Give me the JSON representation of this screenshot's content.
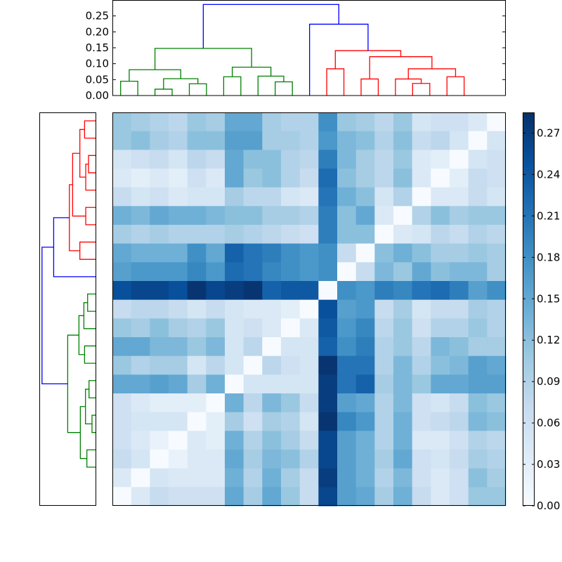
{
  "chart_data": [
    {
      "type": "dendrogram",
      "orientation": "top",
      "ylim": [
        0,
        0.3
      ],
      "yticks": [
        "0.00",
        "0.05",
        "0.10",
        "0.15",
        "0.20",
        "0.25"
      ],
      "leaf_count": 21,
      "merges": [
        {
          "a": 0,
          "b": 1,
          "h": 0.045,
          "color": "#008000"
        },
        {
          "a": 2,
          "b": 3,
          "h": 0.02,
          "color": "#008000"
        },
        {
          "a": 4,
          "b": 5,
          "h": 0.037,
          "color": "#008000"
        },
        {
          "a": 22,
          "b": 23,
          "h": 0.053,
          "color": "#008000"
        },
        {
          "a": 21,
          "b": 24,
          "h": 0.081,
          "color": "#008000"
        },
        {
          "a": 6,
          "b": 7,
          "h": 0.059,
          "color": "#008000"
        },
        {
          "a": 9,
          "b": 10,
          "h": 0.043,
          "color": "#008000"
        },
        {
          "a": 8,
          "b": 27,
          "h": 0.061,
          "color": "#008000"
        },
        {
          "a": 26,
          "b": 28,
          "h": 0.089,
          "color": "#008000"
        },
        {
          "a": 25,
          "b": 29,
          "h": 0.148,
          "color": "#008000"
        },
        {
          "a": 12,
          "b": 13,
          "h": 0.084,
          "color": "#ff0000"
        },
        {
          "a": 14,
          "b": 15,
          "h": 0.052,
          "color": "#ff0000"
        },
        {
          "a": 17,
          "b": 18,
          "h": 0.038,
          "color": "#ff0000"
        },
        {
          "a": 16,
          "b": 33,
          "h": 0.052,
          "color": "#ff0000"
        },
        {
          "a": 19,
          "b": 20,
          "h": 0.059,
          "color": "#ff0000"
        },
        {
          "a": 34,
          "b": 35,
          "h": 0.084,
          "color": "#ff0000"
        },
        {
          "a": 32,
          "b": 36,
          "h": 0.122,
          "color": "#ff0000"
        },
        {
          "a": 31,
          "b": 37,
          "h": 0.141,
          "color": "#ff0000"
        },
        {
          "a": 11,
          "b": 38,
          "h": 0.224,
          "color": "#0000ff"
        },
        {
          "a": 30,
          "b": 39,
          "h": 0.286,
          "color": "#0000ff"
        }
      ]
    },
    {
      "type": "dendrogram",
      "orientation": "left",
      "xlim": [
        0,
        1.05
      ],
      "leaf_count": 21,
      "merges": [
        {
          "a": 0,
          "b": 1,
          "h": 0.205,
          "color": "#ff0000"
        },
        {
          "a": 2,
          "b": 3,
          "h": 0.131,
          "color": "#ff0000"
        },
        {
          "a": 4,
          "b": 22,
          "h": 0.183,
          "color": "#ff0000"
        },
        {
          "a": 21,
          "b": 23,
          "h": 0.293,
          "color": "#ff0000"
        },
        {
          "a": 5,
          "b": 6,
          "h": 0.183,
          "color": "#ff0000"
        },
        {
          "a": 24,
          "b": 25,
          "h": 0.428,
          "color": "#ff0000"
        },
        {
          "a": 7,
          "b": 8,
          "h": 0.293,
          "color": "#ff0000"
        },
        {
          "a": 26,
          "b": 27,
          "h": 0.489,
          "color": "#ff0000"
        },
        {
          "a": 9,
          "b": 28,
          "h": 0.782,
          "color": "#0000ff"
        },
        {
          "a": 10,
          "b": 11,
          "h": 0.148,
          "color": "#008000"
        },
        {
          "a": 12,
          "b": 30,
          "h": 0.218,
          "color": "#008000"
        },
        {
          "a": 13,
          "b": 14,
          "h": 0.205,
          "color": "#008000"
        },
        {
          "a": 31,
          "b": 32,
          "h": 0.31,
          "color": "#008000"
        },
        {
          "a": 15,
          "b": 16,
          "h": 0.122,
          "color": "#008000"
        },
        {
          "a": 17,
          "b": 18,
          "h": 0.066,
          "color": "#008000"
        },
        {
          "a": 34,
          "b": 35,
          "h": 0.188,
          "color": "#008000"
        },
        {
          "a": 19,
          "b": 20,
          "h": 0.162,
          "color": "#008000"
        },
        {
          "a": 36,
          "b": 37,
          "h": 0.284,
          "color": "#008000"
        },
        {
          "a": 33,
          "b": 38,
          "h": 0.52,
          "color": "#008000"
        },
        {
          "a": 29,
          "b": 39,
          "h": 1.0,
          "color": "#0000ff"
        }
      ]
    },
    {
      "type": "heatmap",
      "colormap": "Blues",
      "vmin": 0,
      "vmax": 0.285,
      "colorbar_ticks": [
        "0.00",
        "0.03",
        "0.06",
        "0.09",
        "0.12",
        "0.15",
        "0.18",
        "0.21",
        "0.24",
        "0.27"
      ],
      "values": [
        [
          0.11,
          0.1,
          0.09,
          0.08,
          0.11,
          0.1,
          0.15,
          0.15,
          0.1,
          0.09,
          0.09,
          0.18,
          0.11,
          0.1,
          0.08,
          0.11,
          0.05,
          0.06,
          0.06,
          0.04,
          0.0
        ],
        [
          0.11,
          0.12,
          0.1,
          0.09,
          0.12,
          0.12,
          0.16,
          0.16,
          0.1,
          0.1,
          0.09,
          0.17,
          0.13,
          0.12,
          0.09,
          0.12,
          0.07,
          0.08,
          0.05,
          0.0,
          0.05
        ],
        [
          0.05,
          0.06,
          0.07,
          0.05,
          0.08,
          0.07,
          0.15,
          0.12,
          0.12,
          0.09,
          0.08,
          0.2,
          0.13,
          0.1,
          0.08,
          0.11,
          0.04,
          0.03,
          0.0,
          0.05,
          0.06
        ],
        [
          0.04,
          0.03,
          0.04,
          0.03,
          0.06,
          0.04,
          0.15,
          0.11,
          0.12,
          0.09,
          0.07,
          0.22,
          0.12,
          0.1,
          0.08,
          0.12,
          0.04,
          0.0,
          0.03,
          0.07,
          0.06
        ],
        [
          0.07,
          0.05,
          0.06,
          0.04,
          0.05,
          0.05,
          0.1,
          0.08,
          0.08,
          0.05,
          0.04,
          0.21,
          0.14,
          0.12,
          0.05,
          0.09,
          0.0,
          0.04,
          0.04,
          0.07,
          0.05
        ],
        [
          0.14,
          0.13,
          0.15,
          0.14,
          0.14,
          0.13,
          0.12,
          0.12,
          0.1,
          0.1,
          0.09,
          0.2,
          0.12,
          0.15,
          0.04,
          0.0,
          0.09,
          0.12,
          0.1,
          0.11,
          0.11
        ],
        [
          0.1,
          0.09,
          0.1,
          0.09,
          0.09,
          0.09,
          0.1,
          0.09,
          0.08,
          0.07,
          0.06,
          0.2,
          0.12,
          0.12,
          0.0,
          0.04,
          0.05,
          0.08,
          0.07,
          0.09,
          0.08
        ],
        [
          0.15,
          0.14,
          0.14,
          0.14,
          0.18,
          0.15,
          0.23,
          0.21,
          0.2,
          0.18,
          0.17,
          0.18,
          0.07,
          0.0,
          0.12,
          0.14,
          0.12,
          0.1,
          0.1,
          0.11,
          0.1
        ],
        [
          0.16,
          0.17,
          0.17,
          0.17,
          0.19,
          0.17,
          0.22,
          0.21,
          0.19,
          0.18,
          0.17,
          0.18,
          0.0,
          0.07,
          0.13,
          0.11,
          0.15,
          0.12,
          0.13,
          0.13,
          0.1
        ],
        [
          0.25,
          0.26,
          0.26,
          0.25,
          0.28,
          0.26,
          0.27,
          0.28,
          0.23,
          0.24,
          0.24,
          0.0,
          0.18,
          0.17,
          0.2,
          0.19,
          0.21,
          0.22,
          0.2,
          0.16,
          0.18
        ],
        [
          0.07,
          0.08,
          0.08,
          0.07,
          0.05,
          0.07,
          0.05,
          0.04,
          0.04,
          0.03,
          0.0,
          0.25,
          0.16,
          0.17,
          0.07,
          0.1,
          0.05,
          0.07,
          0.07,
          0.1,
          0.09
        ],
        [
          0.11,
          0.1,
          0.12,
          0.1,
          0.09,
          0.11,
          0.05,
          0.06,
          0.04,
          0.0,
          0.04,
          0.24,
          0.17,
          0.19,
          0.08,
          0.11,
          0.06,
          0.09,
          0.09,
          0.11,
          0.09
        ],
        [
          0.15,
          0.15,
          0.13,
          0.13,
          0.11,
          0.13,
          0.05,
          0.08,
          0.0,
          0.05,
          0.05,
          0.23,
          0.18,
          0.2,
          0.09,
          0.11,
          0.08,
          0.13,
          0.12,
          0.1,
          0.1
        ],
        [
          0.11,
          0.09,
          0.1,
          0.1,
          0.05,
          0.08,
          0.05,
          0.0,
          0.08,
          0.06,
          0.05,
          0.28,
          0.21,
          0.21,
          0.09,
          0.13,
          0.09,
          0.12,
          0.13,
          0.16,
          0.15
        ],
        [
          0.15,
          0.15,
          0.16,
          0.15,
          0.1,
          0.14,
          0.0,
          0.05,
          0.05,
          0.05,
          0.05,
          0.27,
          0.21,
          0.23,
          0.1,
          0.13,
          0.11,
          0.15,
          0.15,
          0.16,
          0.16
        ],
        [
          0.06,
          0.04,
          0.03,
          0.03,
          0.03,
          0.0,
          0.14,
          0.08,
          0.13,
          0.11,
          0.07,
          0.27,
          0.16,
          0.15,
          0.09,
          0.13,
          0.06,
          0.05,
          0.07,
          0.12,
          0.11
        ],
        [
          0.06,
          0.05,
          0.05,
          0.05,
          0.0,
          0.03,
          0.1,
          0.06,
          0.1,
          0.09,
          0.05,
          0.28,
          0.19,
          0.17,
          0.09,
          0.14,
          0.06,
          0.07,
          0.08,
          0.13,
          0.12
        ],
        [
          0.06,
          0.04,
          0.02,
          0.0,
          0.04,
          0.03,
          0.14,
          0.09,
          0.12,
          0.1,
          0.07,
          0.26,
          0.16,
          0.14,
          0.09,
          0.14,
          0.04,
          0.04,
          0.06,
          0.09,
          0.08
        ],
        [
          0.07,
          0.05,
          0.0,
          0.02,
          0.04,
          0.04,
          0.15,
          0.1,
          0.13,
          0.12,
          0.09,
          0.26,
          0.16,
          0.14,
          0.1,
          0.15,
          0.06,
          0.05,
          0.07,
          0.1,
          0.09
        ],
        [
          0.04,
          0.0,
          0.05,
          0.04,
          0.04,
          0.04,
          0.14,
          0.09,
          0.14,
          0.1,
          0.07,
          0.27,
          0.16,
          0.14,
          0.09,
          0.13,
          0.06,
          0.04,
          0.06,
          0.12,
          0.1
        ],
        [
          0.0,
          0.04,
          0.07,
          0.06,
          0.06,
          0.06,
          0.15,
          0.1,
          0.15,
          0.11,
          0.07,
          0.26,
          0.16,
          0.15,
          0.1,
          0.14,
          0.07,
          0.04,
          0.06,
          0.11,
          0.11
        ]
      ]
    }
  ]
}
